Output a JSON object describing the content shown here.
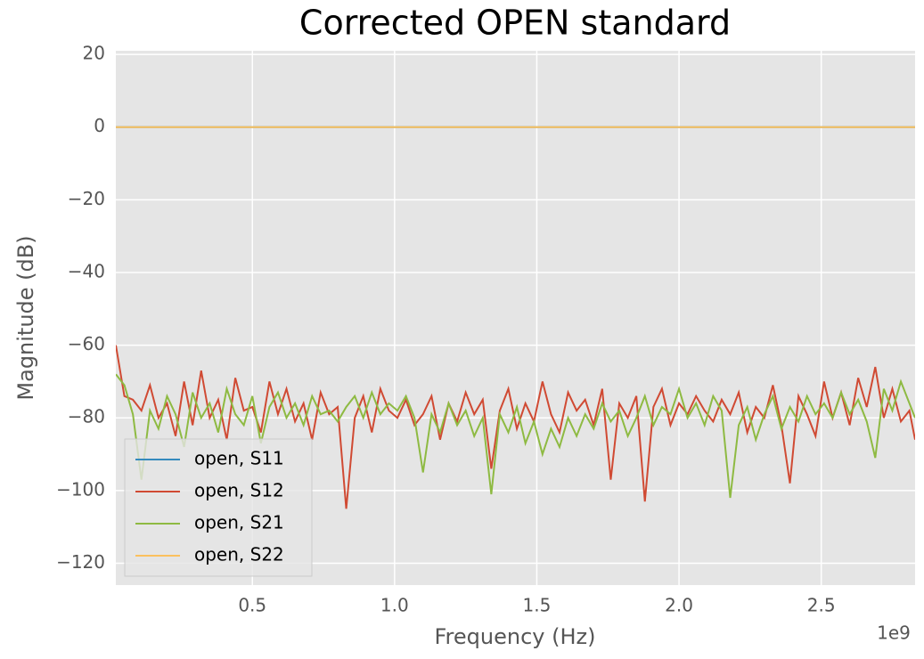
{
  "chart_data": {
    "type": "line",
    "title": "Corrected OPEN standard",
    "xlabel": "Frequency (Hz)",
    "ylabel": "Magnitude (dB)",
    "x_offset_label": "1e9",
    "x": [
      20000000.0,
      50000000.0,
      80000000.0,
      110000000.0,
      140000000.0,
      170000000.0,
      200000000.0,
      230000000.0,
      260000000.0,
      290000000.0,
      320000000.0,
      350000000.0,
      380000000.0,
      410000000.0,
      440000000.0,
      470000000.0,
      500000000.0,
      530000000.0,
      560000000.0,
      590000000.0,
      620000000.0,
      650000000.0,
      680000000.0,
      710000000.0,
      740000000.0,
      770000000.0,
      800000000.0,
      830000000.0,
      860000000.0,
      890000000.0,
      920000000.0,
      950000000.0,
      980000000.0,
      1010000000.0,
      1040000000.0,
      1070000000.0,
      1100000000.0,
      1130000000.0,
      1160000000.0,
      1190000000.0,
      1220000000.0,
      1250000000.0,
      1280000000.0,
      1310000000.0,
      1340000000.0,
      1370000000.0,
      1400000000.0,
      1430000000.0,
      1460000000.0,
      1490000000.0,
      1520000000.0,
      1550000000.0,
      1580000000.0,
      1610000000.0,
      1640000000.0,
      1670000000.0,
      1700000000.0,
      1730000000.0,
      1760000000.0,
      1790000000.0,
      1820000000.0,
      1850000000.0,
      1880000000.0,
      1910000000.0,
      1940000000.0,
      1970000000.0,
      2000000000.0,
      2030000000.0,
      2060000000.0,
      2090000000.0,
      2120000000.0,
      2150000000.0,
      2180000000.0,
      2210000000.0,
      2240000000.0,
      2270000000.0,
      2300000000.0,
      2330000000.0,
      2360000000.0,
      2390000000.0,
      2420000000.0,
      2450000000.0,
      2480000000.0,
      2510000000.0,
      2540000000.0,
      2570000000.0,
      2600000000.0,
      2630000000.0,
      2660000000.0,
      2690000000.0,
      2720000000.0,
      2750000000.0,
      2780000000.0,
      2810000000.0,
      2830000000.0
    ],
    "series": [
      {
        "name": "open, S11",
        "color": "#348abd",
        "values": [
          0,
          0,
          0,
          0,
          0,
          0,
          0,
          0,
          0,
          0,
          0,
          0,
          0,
          0,
          0,
          0,
          0,
          0,
          0,
          0,
          0,
          0,
          0,
          0,
          0,
          0,
          0,
          0,
          0,
          0,
          0,
          0,
          0,
          0,
          0,
          0,
          0,
          0,
          0,
          0,
          0,
          0,
          0,
          0,
          0,
          0,
          0,
          0,
          0,
          0,
          0,
          0,
          0,
          0,
          0,
          0,
          0,
          0,
          0,
          0,
          0,
          0,
          0,
          0,
          0,
          0,
          0,
          0,
          0,
          0,
          0,
          0,
          0,
          0,
          0,
          0,
          0,
          0,
          0,
          0,
          0,
          0,
          0,
          0,
          0,
          0,
          0,
          0,
          0,
          0,
          0,
          0,
          0,
          0,
          0
        ]
      },
      {
        "name": "open, S12",
        "color": "#d04a33",
        "values": [
          -60,
          -74,
          -75,
          -78,
          -71,
          -80,
          -76,
          -85,
          -70,
          -82,
          -67,
          -80,
          -75,
          -86,
          -69,
          -78,
          -77,
          -84,
          -70,
          -79,
          -72,
          -81,
          -76,
          -86,
          -73,
          -79,
          -77,
          -105,
          -80,
          -74,
          -84,
          -72,
          -78,
          -80,
          -75,
          -82,
          -79,
          -74,
          -86,
          -76,
          -81,
          -73,
          -79,
          -75,
          -94,
          -78,
          -72,
          -83,
          -76,
          -81,
          -70,
          -79,
          -84,
          -73,
          -78,
          -75,
          -82,
          -72,
          -97,
          -76,
          -80,
          -74,
          -103,
          -77,
          -72,
          -82,
          -76,
          -79,
          -74,
          -78,
          -81,
          -75,
          -79,
          -73,
          -84,
          -77,
          -80,
          -71,
          -82,
          -98,
          -74,
          -79,
          -85,
          -70,
          -80,
          -73,
          -82,
          -69,
          -77,
          -66,
          -80,
          -72,
          -81,
          -78,
          -86
        ]
      },
      {
        "name": "open, S21",
        "color": "#8eba42",
        "values": [
          -68,
          -71,
          -79,
          -97,
          -78,
          -83,
          -74,
          -79,
          -88,
          -73,
          -80,
          -76,
          -84,
          -72,
          -79,
          -82,
          -74,
          -87,
          -77,
          -73,
          -80,
          -76,
          -82,
          -74,
          -79,
          -78,
          -81,
          -77,
          -74,
          -80,
          -73,
          -79,
          -76,
          -78,
          -74,
          -80,
          -95,
          -79,
          -84,
          -76,
          -82,
          -78,
          -85,
          -80,
          -101,
          -79,
          -84,
          -77,
          -87,
          -81,
          -90,
          -83,
          -88,
          -80,
          -85,
          -79,
          -83,
          -76,
          -81,
          -78,
          -85,
          -80,
          -74,
          -82,
          -77,
          -79,
          -72,
          -80,
          -76,
          -82,
          -74,
          -78,
          -102,
          -82,
          -77,
          -86,
          -79,
          -74,
          -83,
          -77,
          -81,
          -74,
          -79,
          -76,
          -80,
          -73,
          -79,
          -75,
          -81,
          -91,
          -72,
          -78,
          -70,
          -76,
          -80
        ]
      },
      {
        "name": "open, S22",
        "color": "#fbc15e",
        "values": [
          0,
          0,
          0,
          0,
          0,
          0,
          0,
          0,
          0,
          0,
          0,
          0,
          0,
          0,
          0,
          0,
          0,
          0,
          0,
          0,
          0,
          0,
          0,
          0,
          0,
          0,
          0,
          0,
          0,
          0,
          0,
          0,
          0,
          0,
          0,
          0,
          0,
          0,
          0,
          0,
          0,
          0,
          0,
          0,
          0,
          0,
          0,
          0,
          0,
          0,
          0,
          0,
          0,
          0,
          0,
          0,
          0,
          0,
          0,
          0,
          0,
          0,
          0,
          0,
          0,
          0,
          0,
          0,
          0,
          0,
          0,
          0,
          0,
          0,
          0,
          0,
          0,
          0,
          0,
          0,
          0,
          0,
          0,
          0,
          0,
          0,
          0,
          0,
          0,
          0,
          0,
          0,
          0,
          0,
          0
        ]
      }
    ],
    "xlim": [
      20000000.0,
      2830000000.0
    ],
    "xticks": [
      {
        "value": 500000000,
        "label": "0.5"
      },
      {
        "value": 1000000000,
        "label": "1.0"
      },
      {
        "value": 1500000000,
        "label": "1.5"
      },
      {
        "value": 2000000000,
        "label": "2.0"
      },
      {
        "value": 2500000000,
        "label": "2.5"
      }
    ],
    "ylim": [
      -126,
      21
    ],
    "yticks": [
      {
        "value": -120,
        "label": "−120"
      },
      {
        "value": -100,
        "label": "−100"
      },
      {
        "value": -80,
        "label": "−80"
      },
      {
        "value": -60,
        "label": "−60"
      },
      {
        "value": -40,
        "label": "−40"
      },
      {
        "value": -20,
        "label": "−20"
      },
      0,
      20
    ],
    "grid": true,
    "legend": "lower left"
  }
}
